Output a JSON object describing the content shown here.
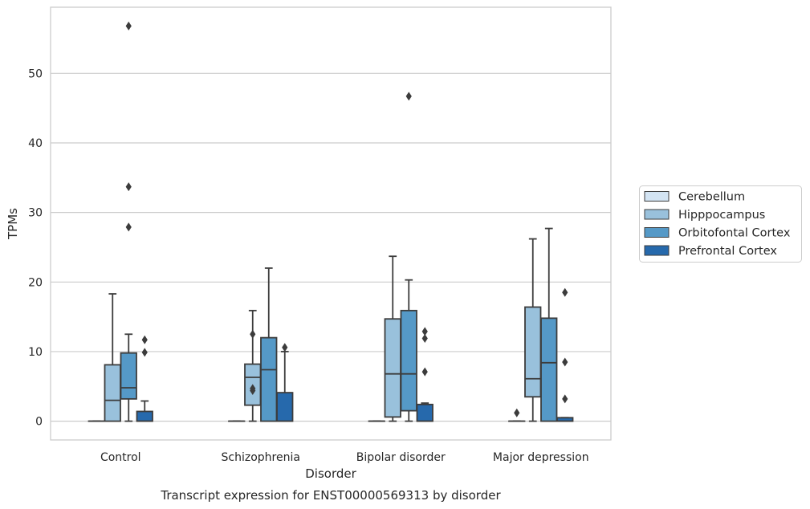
{
  "chart_data": {
    "type": "box",
    "caption": "Transcript expression for ENST00000569313 by disorder",
    "xlabel": "Disorder",
    "ylabel": "TPMs",
    "ylim": [
      -2.7,
      59.5
    ],
    "yticks": [
      0,
      10,
      20,
      30,
      40,
      50
    ],
    "grid": "horizontal",
    "legend_position": "right",
    "categories": [
      "Control",
      "Schizophrenia",
      "Bipolar disorder",
      "Major depression"
    ],
    "series": [
      {
        "name": "Cerebellum",
        "color": "#d3e4f3",
        "boxes": [
          {
            "whislo": 0,
            "q1": 0,
            "med": 0,
            "q3": 0,
            "whishi": 0,
            "fliers": []
          },
          {
            "whislo": 0,
            "q1": 0,
            "med": 0,
            "q3": 0,
            "whishi": 0,
            "fliers": []
          },
          {
            "whislo": 0,
            "q1": 0,
            "med": 0,
            "q3": 0,
            "whishi": 0,
            "fliers": []
          },
          {
            "whislo": 0,
            "q1": 0,
            "med": 0,
            "q3": 0,
            "whishi": 0,
            "fliers": [
              1.2
            ]
          }
        ]
      },
      {
        "name": "Hipppocampus",
        "color": "#99c1dc",
        "boxes": [
          {
            "whislo": 0,
            "q1": 0,
            "med": 3.0,
            "q3": 8.1,
            "whishi": 18.3,
            "fliers": []
          },
          {
            "whislo": 0,
            "q1": 2.3,
            "med": 6.3,
            "q3": 8.2,
            "whishi": 15.9,
            "fliers": [
              12.5,
              4.7,
              4.4
            ]
          },
          {
            "whislo": 0,
            "q1": 0.6,
            "med": 6.8,
            "q3": 14.7,
            "whishi": 23.7,
            "fliers": []
          },
          {
            "whislo": 0,
            "q1": 3.5,
            "med": 6.1,
            "q3": 16.4,
            "whishi": 26.2,
            "fliers": []
          }
        ]
      },
      {
        "name": "Orbitofontal Cortex",
        "color": "#5599c7",
        "boxes": [
          {
            "whislo": 0,
            "q1": 3.2,
            "med": 4.8,
            "q3": 9.8,
            "whishi": 12.5,
            "fliers": [
              56.8,
              33.7,
              27.9
            ]
          },
          {
            "whislo": 0,
            "q1": 0,
            "med": 7.4,
            "q3": 12.0,
            "whishi": 22.0,
            "fliers": []
          },
          {
            "whislo": 0,
            "q1": 1.5,
            "med": 6.8,
            "q3": 15.9,
            "whishi": 20.3,
            "fliers": [
              46.7
            ]
          },
          {
            "whislo": 0,
            "q1": 0,
            "med": 8.4,
            "q3": 14.8,
            "whishi": 27.7,
            "fliers": []
          }
        ]
      },
      {
        "name": "Prefrontal Cortex",
        "color": "#2669ac",
        "boxes": [
          {
            "whislo": 0,
            "q1": 0,
            "med": 0,
            "q3": 1.4,
            "whishi": 2.9,
            "fliers": [
              11.7,
              9.9
            ]
          },
          {
            "whislo": 0,
            "q1": 0,
            "med": 0,
            "q3": 4.1,
            "whishi": 10.0,
            "fliers": [
              10.6
            ]
          },
          {
            "whislo": 0,
            "q1": 0,
            "med": 0,
            "q3": 2.4,
            "whishi": 2.6,
            "fliers": [
              12.9,
              11.9,
              7.1
            ]
          },
          {
            "whislo": 0,
            "q1": 0,
            "med": 0,
            "q3": 0.5,
            "whishi": 0.5,
            "fliers": [
              18.5,
              8.5,
              3.2
            ]
          }
        ]
      }
    ]
  }
}
